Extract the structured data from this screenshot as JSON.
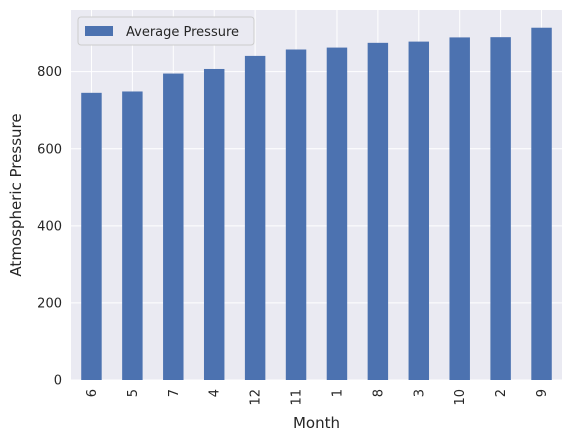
{
  "chart_data": {
    "type": "bar",
    "categories": [
      "6",
      "5",
      "7",
      "4",
      "12",
      "11",
      "1",
      "8",
      "3",
      "10",
      "2",
      "9"
    ],
    "series": [
      {
        "name": "Average Pressure",
        "values": [
          745.1,
          748.6,
          795.1,
          807.0,
          840.9,
          857.5,
          862.5,
          874.8,
          878.0,
          888.9,
          889.5,
          914.0
        ]
      }
    ],
    "xlabel": "Month",
    "ylabel": "Atmospheric Pressure",
    "ylim": [
      0,
      960
    ],
    "yticks": [
      "0",
      "200",
      "400",
      "600",
      "800"
    ],
    "legend_position": "top-left",
    "grid": true,
    "colors": {
      "bar": "#4c72b0",
      "plot_background": "#eaeaf2",
      "grid": "#ffffff"
    }
  }
}
